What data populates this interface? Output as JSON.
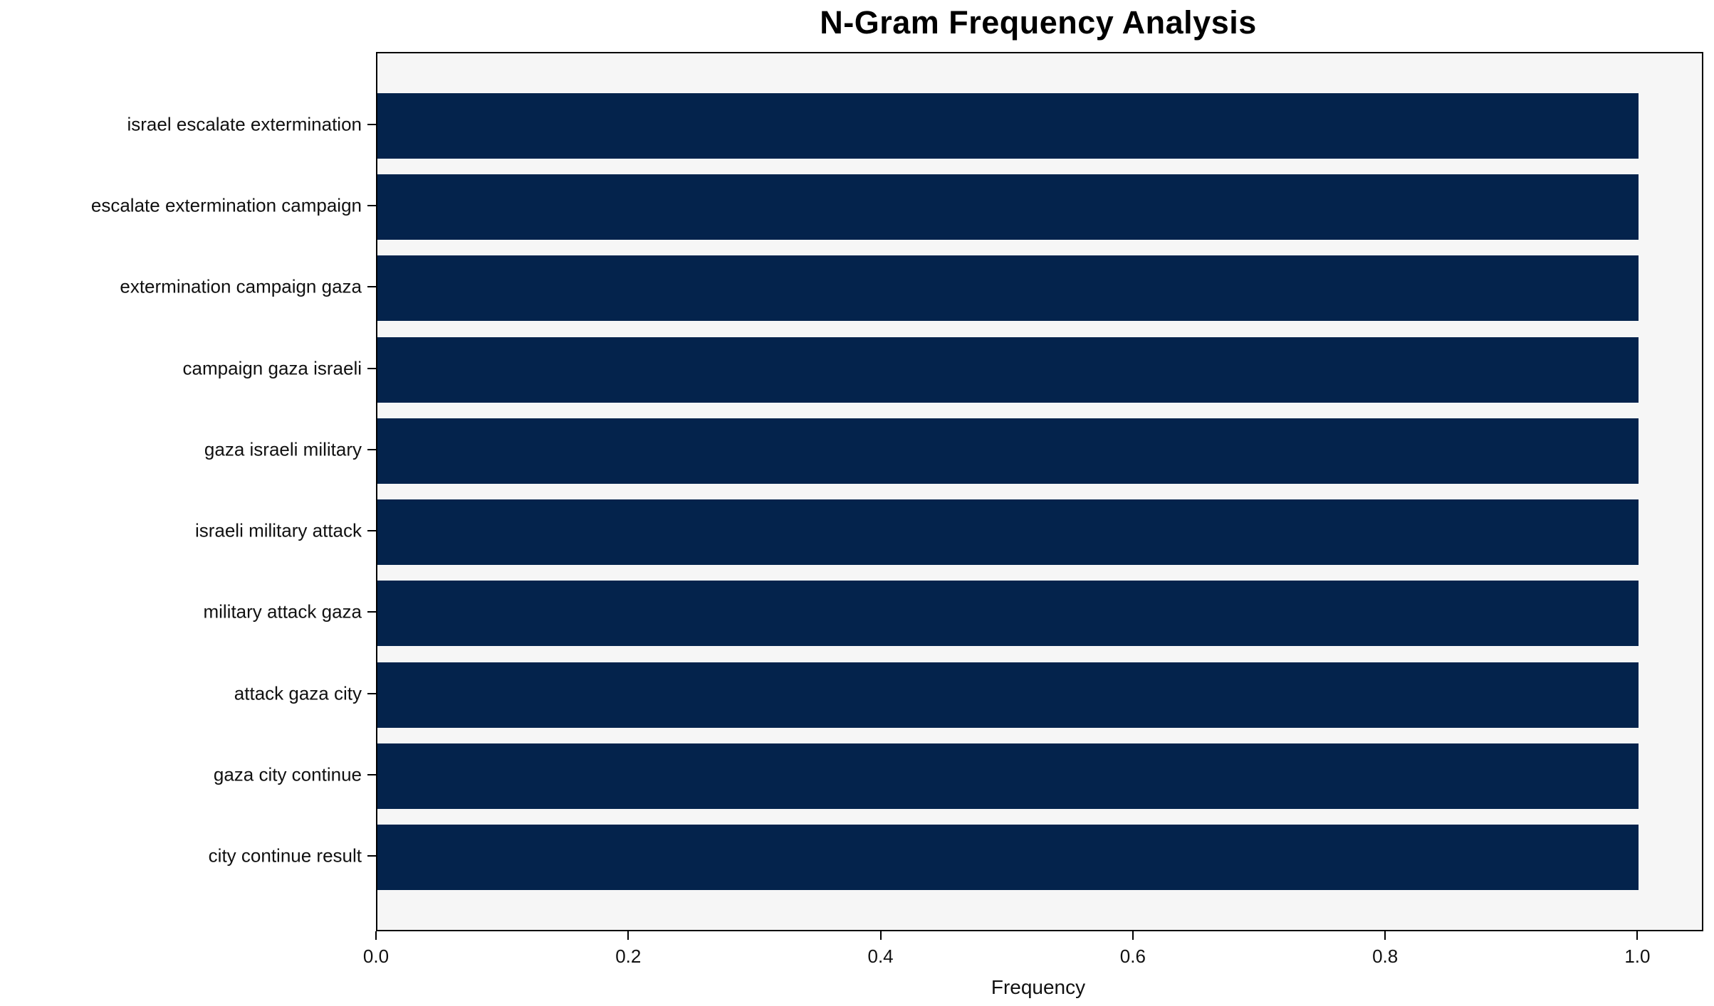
{
  "chart_data": {
    "type": "bar",
    "orientation": "horizontal",
    "title": "N-Gram Frequency Analysis",
    "xlabel": "Frequency",
    "ylabel": "",
    "categories": [
      "israel escalate extermination",
      "escalate extermination campaign",
      "extermination campaign gaza",
      "campaign gaza israeli",
      "gaza israeli military",
      "israeli military attack",
      "military attack gaza",
      "attack gaza city",
      "gaza city continue",
      "city continue result"
    ],
    "values": [
      1.0,
      1.0,
      1.0,
      1.0,
      1.0,
      1.0,
      1.0,
      1.0,
      1.0,
      1.0
    ],
    "xticks": [
      0.0,
      0.2,
      0.4,
      0.6,
      0.8,
      1.0
    ],
    "xtick_labels": [
      "0.0",
      "0.2",
      "0.4",
      "0.6",
      "0.8",
      "1.0"
    ],
    "xlim": [
      0,
      1.05
    ],
    "grid": false,
    "legend": null,
    "colors": {
      "bar": "#04234c",
      "plot_background": "#f6f6f6",
      "figure_background": "#ffffff",
      "spine": "#000000",
      "text": "#111111"
    }
  }
}
